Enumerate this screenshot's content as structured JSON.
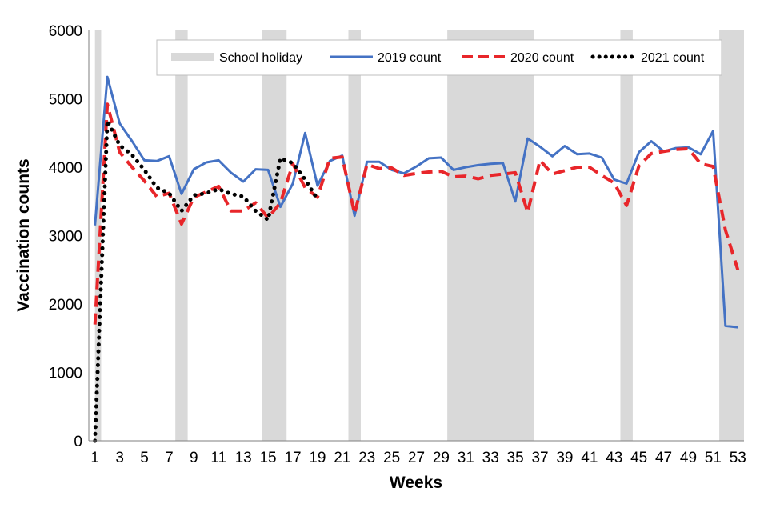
{
  "chart_data": {
    "type": "line",
    "xlabel": "Weeks",
    "ylabel": "Vaccination counts",
    "xlim": [
      1,
      53
    ],
    "ylim": [
      0,
      6000
    ],
    "x_ticks": [
      1,
      3,
      5,
      7,
      9,
      11,
      13,
      15,
      17,
      19,
      21,
      23,
      25,
      27,
      29,
      31,
      33,
      35,
      37,
      39,
      41,
      43,
      45,
      47,
      49,
      51,
      53
    ],
    "y_ticks": [
      0,
      1000,
      2000,
      3000,
      4000,
      5000,
      6000
    ],
    "grid": false,
    "legend_position": "top-right",
    "school_holidays": {
      "name": "School holiday",
      "color": "#d9d9d9",
      "week_ranges": [
        [
          1,
          1.5
        ],
        [
          7.5,
          8.5
        ],
        [
          14.5,
          16.5
        ],
        [
          21.5,
          22.5
        ],
        [
          29.5,
          36.5
        ],
        [
          43.5,
          44.5
        ],
        [
          51.5,
          53.5
        ]
      ]
    },
    "series": [
      {
        "name": "2019 count",
        "color": "#4472c4",
        "style": "solid",
        "x": [
          1,
          2,
          3,
          4,
          5,
          6,
          7,
          8,
          9,
          10,
          11,
          12,
          13,
          14,
          15,
          16,
          17,
          18,
          19,
          20,
          21,
          22,
          23,
          24,
          25,
          26,
          27,
          28,
          29,
          30,
          31,
          32,
          33,
          34,
          35,
          36,
          37,
          38,
          39,
          40,
          41,
          42,
          43,
          44,
          45,
          46,
          47,
          48,
          49,
          50,
          51,
          52,
          53
        ],
        "values": [
          3150,
          5320,
          4640,
          4380,
          4100,
          4090,
          4160,
          3610,
          3970,
          4070,
          4100,
          3920,
          3790,
          3970,
          3960,
          3420,
          3760,
          4500,
          3730,
          4090,
          4170,
          3290,
          4080,
          4080,
          3960,
          3910,
          4010,
          4130,
          4140,
          3960,
          4000,
          4030,
          4050,
          4060,
          3500,
          4420,
          4300,
          4160,
          4310,
          4190,
          4200,
          4140,
          3820,
          3760,
          4220,
          4380,
          4230,
          4280,
          4290,
          4190,
          4530,
          1680,
          1660
        ]
      },
      {
        "name": "2020 count",
        "color": "#e8262a",
        "style": "dashed",
        "x": [
          1,
          2,
          3,
          4,
          5,
          6,
          7,
          8,
          9,
          10,
          11,
          12,
          13,
          14,
          15,
          16,
          17,
          18,
          19,
          20,
          21,
          22,
          23,
          24,
          25,
          26,
          27,
          28,
          29,
          30,
          31,
          32,
          33,
          34,
          35,
          36,
          37,
          38,
          39,
          40,
          41,
          42,
          43,
          44,
          45,
          46,
          47,
          48,
          49,
          50,
          51,
          52,
          53
        ],
        "values": [
          1700,
          4920,
          4220,
          4000,
          3800,
          3570,
          3620,
          3170,
          3560,
          3640,
          3720,
          3360,
          3360,
          3480,
          3260,
          3480,
          4050,
          3700,
          3560,
          4130,
          4150,
          3320,
          4040,
          3980,
          3990,
          3880,
          3910,
          3930,
          3940,
          3860,
          3870,
          3830,
          3880,
          3900,
          3920,
          3340,
          4100,
          3900,
          3950,
          4000,
          4000,
          3880,
          3770,
          3440,
          4020,
          4200,
          4230,
          4260,
          4270,
          4050,
          4010,
          3080,
          2500
        ]
      },
      {
        "name": "2021 count",
        "color": "#000000",
        "style": "dotted",
        "x": [
          1,
          2,
          3,
          4,
          5,
          6,
          7,
          8,
          9,
          10,
          11,
          12,
          13,
          14,
          15,
          16,
          17,
          18,
          19
        ],
        "values": [
          0,
          4680,
          4320,
          4180,
          3960,
          3700,
          3620,
          3360,
          3590,
          3620,
          3680,
          3610,
          3570,
          3360,
          3230,
          4130,
          4060,
          3820,
          3530
        ]
      }
    ]
  }
}
